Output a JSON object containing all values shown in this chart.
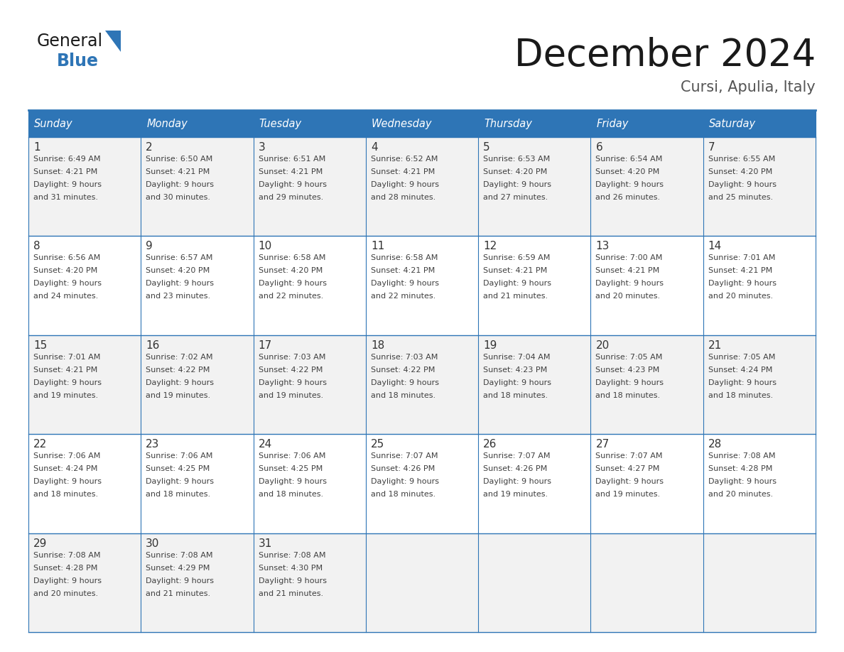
{
  "title": "December 2024",
  "subtitle": "Cursi, Apulia, Italy",
  "header_color": "#2E75B6",
  "header_text_color": "#FFFFFF",
  "day_headers": [
    "Sunday",
    "Monday",
    "Tuesday",
    "Wednesday",
    "Thursday",
    "Friday",
    "Saturday"
  ],
  "background_color": "#FFFFFF",
  "cell_bg_even": "#F2F2F2",
  "cell_bg_odd": "#FFFFFF",
  "border_color": "#2E75B6",
  "text_color": "#404040",
  "day_num_color": "#333333",
  "logo_general_color": "#1a1a1a",
  "logo_blue_color": "#2E75B6",
  "logo_triangle_color": "#2E75B6",
  "title_color": "#1a1a1a",
  "subtitle_color": "#555555",
  "days": [
    {
      "day": 1,
      "col": 0,
      "row": 0,
      "sunrise": "6:49 AM",
      "sunset": "4:21 PM",
      "daylight_mins": 31
    },
    {
      "day": 2,
      "col": 1,
      "row": 0,
      "sunrise": "6:50 AM",
      "sunset": "4:21 PM",
      "daylight_mins": 30
    },
    {
      "day": 3,
      "col": 2,
      "row": 0,
      "sunrise": "6:51 AM",
      "sunset": "4:21 PM",
      "daylight_mins": 29
    },
    {
      "day": 4,
      "col": 3,
      "row": 0,
      "sunrise": "6:52 AM",
      "sunset": "4:21 PM",
      "daylight_mins": 28
    },
    {
      "day": 5,
      "col": 4,
      "row": 0,
      "sunrise": "6:53 AM",
      "sunset": "4:20 PM",
      "daylight_mins": 27
    },
    {
      "day": 6,
      "col": 5,
      "row": 0,
      "sunrise": "6:54 AM",
      "sunset": "4:20 PM",
      "daylight_mins": 26
    },
    {
      "day": 7,
      "col": 6,
      "row": 0,
      "sunrise": "6:55 AM",
      "sunset": "4:20 PM",
      "daylight_mins": 25
    },
    {
      "day": 8,
      "col": 0,
      "row": 1,
      "sunrise": "6:56 AM",
      "sunset": "4:20 PM",
      "daylight_mins": 24
    },
    {
      "day": 9,
      "col": 1,
      "row": 1,
      "sunrise": "6:57 AM",
      "sunset": "4:20 PM",
      "daylight_mins": 23
    },
    {
      "day": 10,
      "col": 2,
      "row": 1,
      "sunrise": "6:58 AM",
      "sunset": "4:20 PM",
      "daylight_mins": 22
    },
    {
      "day": 11,
      "col": 3,
      "row": 1,
      "sunrise": "6:58 AM",
      "sunset": "4:21 PM",
      "daylight_mins": 22
    },
    {
      "day": 12,
      "col": 4,
      "row": 1,
      "sunrise": "6:59 AM",
      "sunset": "4:21 PM",
      "daylight_mins": 21
    },
    {
      "day": 13,
      "col": 5,
      "row": 1,
      "sunrise": "7:00 AM",
      "sunset": "4:21 PM",
      "daylight_mins": 20
    },
    {
      "day": 14,
      "col": 6,
      "row": 1,
      "sunrise": "7:01 AM",
      "sunset": "4:21 PM",
      "daylight_mins": 20
    },
    {
      "day": 15,
      "col": 0,
      "row": 2,
      "sunrise": "7:01 AM",
      "sunset": "4:21 PM",
      "daylight_mins": 19
    },
    {
      "day": 16,
      "col": 1,
      "row": 2,
      "sunrise": "7:02 AM",
      "sunset": "4:22 PM",
      "daylight_mins": 19
    },
    {
      "day": 17,
      "col": 2,
      "row": 2,
      "sunrise": "7:03 AM",
      "sunset": "4:22 PM",
      "daylight_mins": 19
    },
    {
      "day": 18,
      "col": 3,
      "row": 2,
      "sunrise": "7:03 AM",
      "sunset": "4:22 PM",
      "daylight_mins": 18
    },
    {
      "day": 19,
      "col": 4,
      "row": 2,
      "sunrise": "7:04 AM",
      "sunset": "4:23 PM",
      "daylight_mins": 18
    },
    {
      "day": 20,
      "col": 5,
      "row": 2,
      "sunrise": "7:05 AM",
      "sunset": "4:23 PM",
      "daylight_mins": 18
    },
    {
      "day": 21,
      "col": 6,
      "row": 2,
      "sunrise": "7:05 AM",
      "sunset": "4:24 PM",
      "daylight_mins": 18
    },
    {
      "day": 22,
      "col": 0,
      "row": 3,
      "sunrise": "7:06 AM",
      "sunset": "4:24 PM",
      "daylight_mins": 18
    },
    {
      "day": 23,
      "col": 1,
      "row": 3,
      "sunrise": "7:06 AM",
      "sunset": "4:25 PM",
      "daylight_mins": 18
    },
    {
      "day": 24,
      "col": 2,
      "row": 3,
      "sunrise": "7:06 AM",
      "sunset": "4:25 PM",
      "daylight_mins": 18
    },
    {
      "day": 25,
      "col": 3,
      "row": 3,
      "sunrise": "7:07 AM",
      "sunset": "4:26 PM",
      "daylight_mins": 18
    },
    {
      "day": 26,
      "col": 4,
      "row": 3,
      "sunrise": "7:07 AM",
      "sunset": "4:26 PM",
      "daylight_mins": 19
    },
    {
      "day": 27,
      "col": 5,
      "row": 3,
      "sunrise": "7:07 AM",
      "sunset": "4:27 PM",
      "daylight_mins": 19
    },
    {
      "day": 28,
      "col": 6,
      "row": 3,
      "sunrise": "7:08 AM",
      "sunset": "4:28 PM",
      "daylight_mins": 20
    },
    {
      "day": 29,
      "col": 0,
      "row": 4,
      "sunrise": "7:08 AM",
      "sunset": "4:28 PM",
      "daylight_mins": 20
    },
    {
      "day": 30,
      "col": 1,
      "row": 4,
      "sunrise": "7:08 AM",
      "sunset": "4:29 PM",
      "daylight_mins": 21
    },
    {
      "day": 31,
      "col": 2,
      "row": 4,
      "sunrise": "7:08 AM",
      "sunset": "4:30 PM",
      "daylight_mins": 21
    }
  ]
}
